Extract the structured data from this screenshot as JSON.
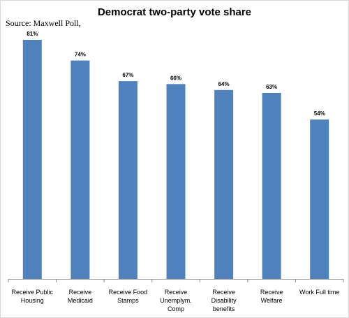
{
  "chart_data": {
    "type": "bar",
    "title": "Democrat two-party vote share",
    "source": "Source: Maxwell Poll,",
    "categories": [
      [
        "Receive Public",
        "Housing"
      ],
      [
        "Receive",
        "Medicaid"
      ],
      [
        "Receive Food",
        "Stamps"
      ],
      [
        "Receive",
        "Unemplym.",
        "Comp"
      ],
      [
        "Receive",
        "Disability",
        "benefits"
      ],
      [
        "Receive",
        "Welfare"
      ],
      [
        "Work Full time"
      ]
    ],
    "values": [
      81,
      74,
      67,
      66,
      64,
      63,
      54
    ],
    "data_labels": [
      "81%",
      "74%",
      "67%",
      "66%",
      "64%",
      "63%",
      "54%"
    ],
    "xlabel": "",
    "ylabel": "",
    "ylim": [
      0,
      90
    ],
    "grid": false,
    "legend": "none",
    "colors": {
      "bar": "#4f81bd",
      "axis": "#8c8c8c",
      "frame": "#d9d9d9"
    }
  }
}
